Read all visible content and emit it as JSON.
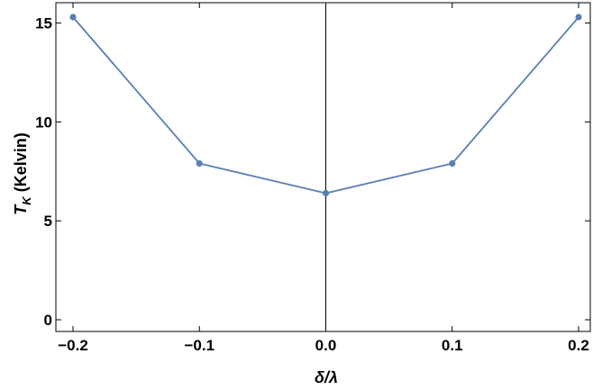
{
  "chart_data": {
    "type": "line",
    "title": "",
    "xlabel": "δ/λ",
    "ylabel": "T",
    "ylabel_subscript": "K",
    "ylabel_unit": " (Kelvin)",
    "x": [
      -0.2,
      -0.1,
      0.0,
      0.1,
      0.2
    ],
    "series": [
      {
        "values": [
          15.3,
          7.9,
          6.4,
          7.9,
          15.3
        ]
      }
    ],
    "xlim": [
      -0.2,
      0.2
    ],
    "ylim": [
      0,
      15.3
    ],
    "xticks": [
      -0.2,
      -0.1,
      0.0,
      0.1,
      0.2
    ],
    "xtick_labels": [
      "−0.2",
      "−0.1",
      "0.0",
      "0.1",
      "0.2"
    ],
    "yticks": [
      0,
      5,
      10,
      15
    ],
    "ytick_labels": [
      "0",
      "5",
      "10",
      "15"
    ],
    "grid": false,
    "line_color": "#5b7fb5",
    "frame_color": "#000000"
  }
}
